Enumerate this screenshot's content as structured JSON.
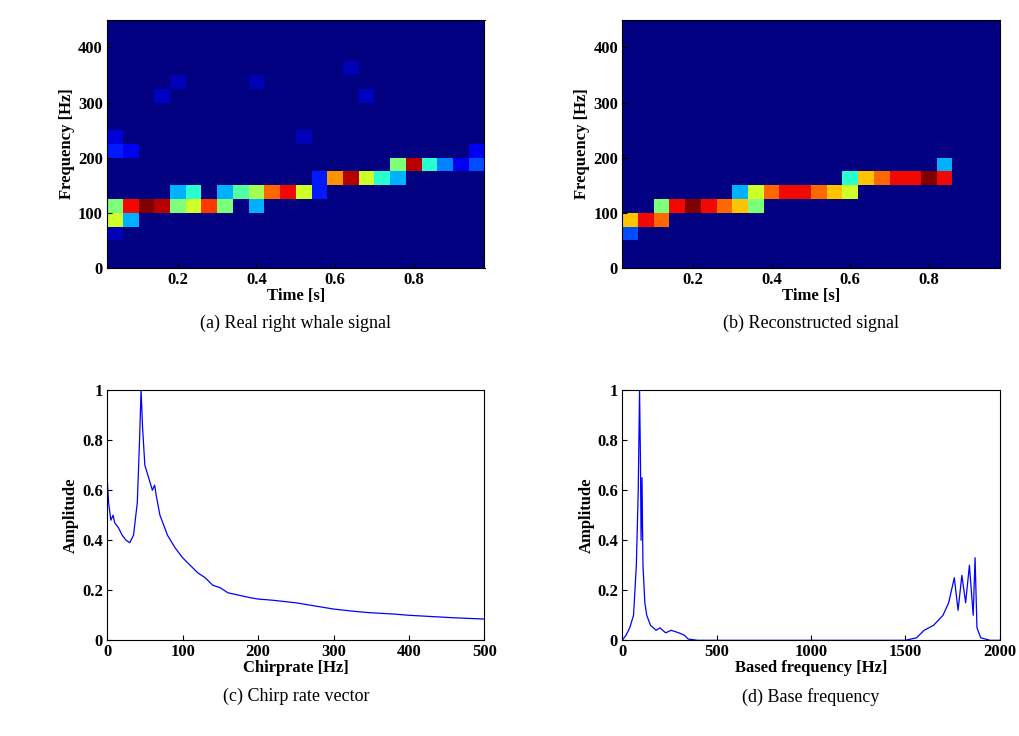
{
  "chart_data": [
    {
      "type": "heatmap",
      "caption": "(a) Real right whale signal",
      "x_label": "Time [s]",
      "y_label": "Frequency [Hz]",
      "xlim": [
        0.02,
        0.98
      ],
      "ylim": [
        0,
        450
      ],
      "xticks": [
        0.2,
        0.4,
        0.6,
        0.8
      ],
      "yticks": [
        0,
        100,
        200,
        300,
        400
      ],
      "x_edges": [
        0.02,
        0.06,
        0.1,
        0.14,
        0.18,
        0.22,
        0.26,
        0.3,
        0.34,
        0.38,
        0.42,
        0.46,
        0.5,
        0.54,
        0.58,
        0.62,
        0.66,
        0.7,
        0.74,
        0.78,
        0.82,
        0.86,
        0.9,
        0.94,
        0.98
      ],
      "y_edges": [
        0,
        25,
        50,
        75,
        100,
        125,
        150,
        175,
        200,
        225,
        250,
        275,
        300,
        325,
        350,
        375,
        400,
        425,
        450
      ],
      "color_range": [
        0,
        1
      ],
      "cells": [
        [
          0,
          0,
          0,
          0,
          0,
          0,
          0,
          0,
          0,
          0,
          0,
          0,
          0,
          0,
          0,
          0,
          0,
          0,
          0,
          0,
          0,
          0,
          0,
          0
        ],
        [
          0,
          0,
          0,
          0,
          0,
          0,
          0,
          0,
          0,
          0,
          0,
          0,
          0,
          0,
          0,
          0,
          0,
          0,
          0,
          0,
          0,
          0,
          0,
          0
        ],
        [
          0.05,
          0,
          0,
          0,
          0,
          0,
          0,
          0,
          0,
          0,
          0,
          0,
          0,
          0,
          0,
          0,
          0,
          0,
          0,
          0,
          0,
          0,
          0,
          0
        ],
        [
          0.6,
          0.3,
          0,
          0,
          0,
          0,
          0,
          0,
          0,
          0,
          0,
          0,
          0,
          0,
          0,
          0,
          0,
          0,
          0,
          0,
          0,
          0,
          0,
          0
        ],
        [
          0.5,
          0.9,
          1.0,
          0.95,
          0.5,
          0.6,
          0.85,
          0.5,
          0,
          0.3,
          0,
          0,
          0,
          0,
          0,
          0,
          0,
          0,
          0,
          0,
          0,
          0,
          0,
          0
        ],
        [
          0,
          0,
          0,
          0,
          0.3,
          0.4,
          0,
          0.3,
          0.45,
          0.55,
          0.8,
          0.9,
          0.6,
          0.15,
          0,
          0,
          0,
          0,
          0,
          0,
          0,
          0,
          0,
          0
        ],
        [
          0,
          0,
          0,
          0,
          0,
          0,
          0,
          0,
          0,
          0,
          0,
          0,
          0,
          0.15,
          0.75,
          0.95,
          0.6,
          0.4,
          0.3,
          0,
          0,
          0,
          0,
          0
        ],
        [
          0,
          0,
          0,
          0,
          0,
          0,
          0,
          0,
          0,
          0,
          0,
          0,
          0,
          0,
          0,
          0,
          0,
          0,
          0.5,
          0.95,
          0.4,
          0.25,
          0.1,
          0.2
        ],
        [
          0.15,
          0.1,
          0,
          0,
          0,
          0,
          0,
          0,
          0,
          0,
          0,
          0,
          0,
          0,
          0,
          0,
          0,
          0,
          0,
          0,
          0,
          0,
          0,
          0.1
        ],
        [
          0.08,
          0,
          0,
          0,
          0,
          0,
          0,
          0,
          0,
          0,
          0,
          0,
          0.05,
          0,
          0,
          0,
          0,
          0,
          0,
          0,
          0,
          0,
          0,
          0
        ],
        [
          0,
          0,
          0,
          0,
          0,
          0,
          0,
          0,
          0,
          0,
          0,
          0,
          0,
          0,
          0,
          0,
          0,
          0,
          0,
          0,
          0,
          0,
          0,
          0
        ],
        [
          0,
          0,
          0,
          0,
          0,
          0,
          0,
          0,
          0,
          0,
          0,
          0,
          0,
          0,
          0,
          0,
          0,
          0,
          0,
          0,
          0,
          0,
          0,
          0
        ],
        [
          0,
          0,
          0,
          0.06,
          0,
          0,
          0,
          0,
          0,
          0,
          0,
          0,
          0,
          0,
          0,
          0,
          0.06,
          0,
          0,
          0,
          0,
          0,
          0,
          0
        ],
        [
          0,
          0,
          0,
          0,
          0.05,
          0,
          0,
          0,
          0,
          0.05,
          0,
          0,
          0,
          0,
          0,
          0,
          0,
          0,
          0,
          0,
          0,
          0,
          0,
          0
        ],
        [
          0,
          0,
          0,
          0,
          0,
          0,
          0,
          0,
          0,
          0,
          0,
          0,
          0,
          0,
          0,
          0.05,
          0,
          0,
          0,
          0,
          0,
          0,
          0,
          0
        ],
        [
          0,
          0,
          0,
          0,
          0,
          0,
          0,
          0,
          0,
          0,
          0,
          0,
          0,
          0,
          0,
          0,
          0,
          0,
          0,
          0,
          0,
          0,
          0,
          0
        ],
        [
          0,
          0,
          0,
          0,
          0,
          0,
          0,
          0,
          0,
          0,
          0,
          0,
          0,
          0,
          0,
          0,
          0,
          0,
          0,
          0,
          0,
          0,
          0,
          0
        ],
        [
          0,
          0,
          0,
          0,
          0,
          0,
          0,
          0,
          0,
          0,
          0,
          0,
          0,
          0,
          0,
          0,
          0,
          0,
          0,
          0,
          0,
          0,
          0,
          0
        ]
      ]
    },
    {
      "type": "heatmap",
      "caption": "(b) Reconstructed signal",
      "x_label": "Time [s]",
      "y_label": "Frequency [Hz]",
      "xlim": [
        0.02,
        0.98
      ],
      "ylim": [
        0,
        450
      ],
      "xticks": [
        0.2,
        0.4,
        0.6,
        0.8
      ],
      "yticks": [
        0,
        100,
        200,
        300,
        400
      ],
      "x_edges": [
        0.02,
        0.06,
        0.1,
        0.14,
        0.18,
        0.22,
        0.26,
        0.3,
        0.34,
        0.38,
        0.42,
        0.46,
        0.5,
        0.54,
        0.58,
        0.62,
        0.66,
        0.7,
        0.74,
        0.78,
        0.82,
        0.86,
        0.9,
        0.94,
        0.98
      ],
      "y_edges": [
        0,
        25,
        50,
        75,
        100,
        125,
        150,
        175,
        200,
        225,
        250,
        275,
        300,
        325,
        350,
        375,
        400,
        425,
        450
      ],
      "color_range": [
        0,
        1
      ],
      "cells": [
        [
          0,
          0,
          0,
          0,
          0,
          0,
          0,
          0,
          0,
          0,
          0,
          0,
          0,
          0,
          0,
          0,
          0,
          0,
          0,
          0,
          0,
          0,
          0,
          0
        ],
        [
          0,
          0,
          0,
          0,
          0,
          0,
          0,
          0,
          0,
          0,
          0,
          0,
          0,
          0,
          0,
          0,
          0,
          0,
          0,
          0,
          0,
          0,
          0,
          0
        ],
        [
          0.2,
          0,
          0,
          0,
          0,
          0,
          0,
          0,
          0,
          0,
          0,
          0,
          0,
          0,
          0,
          0,
          0,
          0,
          0,
          0,
          0,
          0,
          0,
          0
        ],
        [
          0.7,
          0.9,
          0.8,
          0,
          0,
          0,
          0,
          0,
          0,
          0,
          0,
          0,
          0,
          0,
          0,
          0,
          0,
          0,
          0,
          0,
          0,
          0,
          0,
          0
        ],
        [
          0,
          0,
          0.5,
          0.9,
          1.0,
          0.9,
          0.8,
          0.7,
          0.5,
          0,
          0,
          0,
          0,
          0,
          0,
          0,
          0,
          0,
          0,
          0,
          0,
          0,
          0,
          0
        ],
        [
          0,
          0,
          0,
          0,
          0,
          0,
          0,
          0.3,
          0.6,
          0.8,
          0.9,
          0.9,
          0.8,
          0.7,
          0.6,
          0,
          0,
          0,
          0,
          0,
          0,
          0,
          0,
          0
        ],
        [
          0,
          0,
          0,
          0,
          0,
          0,
          0,
          0,
          0,
          0,
          0,
          0,
          0,
          0,
          0.4,
          0.7,
          0.8,
          0.9,
          0.9,
          1.0,
          0.9,
          0,
          0,
          0
        ],
        [
          0,
          0,
          0,
          0,
          0,
          0,
          0,
          0,
          0,
          0,
          0,
          0,
          0,
          0,
          0,
          0,
          0,
          0,
          0,
          0,
          0.3,
          0,
          0,
          0
        ],
        [
          0,
          0,
          0,
          0,
          0,
          0,
          0,
          0,
          0,
          0,
          0,
          0,
          0,
          0,
          0,
          0,
          0,
          0,
          0,
          0,
          0,
          0,
          0,
          0
        ],
        [
          0,
          0,
          0,
          0,
          0,
          0,
          0,
          0,
          0,
          0,
          0,
          0,
          0,
          0,
          0,
          0,
          0,
          0,
          0,
          0,
          0,
          0,
          0,
          0
        ],
        [
          0,
          0,
          0,
          0,
          0,
          0,
          0,
          0,
          0,
          0,
          0,
          0,
          0,
          0,
          0,
          0,
          0,
          0,
          0,
          0,
          0,
          0,
          0,
          0
        ],
        [
          0,
          0,
          0,
          0,
          0,
          0,
          0,
          0,
          0,
          0,
          0,
          0,
          0,
          0,
          0,
          0,
          0,
          0,
          0,
          0,
          0,
          0,
          0,
          0
        ],
        [
          0,
          0,
          0,
          0,
          0,
          0,
          0,
          0,
          0,
          0,
          0,
          0,
          0,
          0,
          0,
          0,
          0,
          0,
          0,
          0,
          0,
          0,
          0,
          0
        ],
        [
          0,
          0,
          0,
          0,
          0,
          0,
          0,
          0,
          0,
          0,
          0,
          0,
          0,
          0,
          0,
          0,
          0,
          0,
          0,
          0,
          0,
          0,
          0,
          0
        ],
        [
          0,
          0,
          0,
          0,
          0,
          0,
          0,
          0,
          0,
          0,
          0,
          0,
          0,
          0,
          0,
          0,
          0,
          0,
          0,
          0,
          0,
          0,
          0,
          0
        ],
        [
          0,
          0,
          0,
          0,
          0,
          0,
          0,
          0,
          0,
          0,
          0,
          0,
          0,
          0,
          0,
          0,
          0,
          0,
          0,
          0,
          0,
          0,
          0,
          0
        ],
        [
          0,
          0,
          0,
          0,
          0,
          0,
          0,
          0,
          0,
          0,
          0,
          0,
          0,
          0,
          0,
          0,
          0,
          0,
          0,
          0,
          0,
          0,
          0,
          0
        ],
        [
          0,
          0,
          0,
          0,
          0,
          0,
          0,
          0,
          0,
          0,
          0,
          0,
          0,
          0,
          0,
          0,
          0,
          0,
          0,
          0,
          0,
          0,
          0,
          0
        ]
      ]
    },
    {
      "type": "line",
      "caption": "(c) Chirp rate vector",
      "x_label": "Chirprate [Hz]",
      "y_label": "Amplitude",
      "xlim": [
        0,
        500
      ],
      "ylim": [
        0,
        1
      ],
      "xticks": [
        0,
        100,
        200,
        300,
        400,
        500
      ],
      "yticks": [
        0,
        0.2,
        0.4,
        0.6,
        0.8,
        1
      ],
      "color": "#0000ff",
      "x": [
        0,
        2,
        5,
        8,
        10,
        15,
        20,
        25,
        30,
        35,
        40,
        43,
        45,
        47,
        50,
        55,
        60,
        63,
        65,
        70,
        80,
        90,
        100,
        110,
        120,
        130,
        140,
        150,
        160,
        175,
        190,
        200,
        220,
        250,
        280,
        300,
        330,
        350,
        380,
        400,
        430,
        460,
        500
      ],
      "values": [
        0.65,
        0.55,
        0.48,
        0.5,
        0.47,
        0.45,
        0.42,
        0.4,
        0.39,
        0.42,
        0.55,
        0.8,
        1.0,
        0.85,
        0.7,
        0.65,
        0.6,
        0.62,
        0.58,
        0.5,
        0.42,
        0.37,
        0.33,
        0.3,
        0.27,
        0.25,
        0.22,
        0.21,
        0.19,
        0.18,
        0.17,
        0.165,
        0.16,
        0.15,
        0.135,
        0.125,
        0.115,
        0.11,
        0.105,
        0.1,
        0.095,
        0.09,
        0.085
      ]
    },
    {
      "type": "line",
      "caption": "(d) Base frequency",
      "x_label": "Based frequency [Hz]",
      "y_label": "Amplitude",
      "xlim": [
        0,
        2000
      ],
      "ylim": [
        0,
        1
      ],
      "xticks": [
        0,
        500,
        1000,
        1500,
        2000
      ],
      "yticks": [
        0,
        0.2,
        0.4,
        0.6,
        0.8,
        1
      ],
      "color": "#0000ff",
      "x": [
        0,
        20,
        40,
        60,
        75,
        85,
        92,
        97,
        100,
        105,
        110,
        120,
        130,
        150,
        180,
        200,
        230,
        260,
        300,
        330,
        350,
        400,
        1500,
        1560,
        1600,
        1650,
        1700,
        1730,
        1760,
        1780,
        1800,
        1820,
        1840,
        1860,
        1870,
        1880,
        1900,
        1950,
        2000
      ],
      "values": [
        0,
        0.02,
        0.05,
        0.1,
        0.3,
        0.6,
        1.0,
        0.7,
        0.4,
        0.65,
        0.3,
        0.15,
        0.1,
        0.06,
        0.04,
        0.05,
        0.03,
        0.04,
        0.03,
        0.02,
        0.005,
        0,
        0,
        0.01,
        0.04,
        0.06,
        0.1,
        0.15,
        0.25,
        0.12,
        0.26,
        0.15,
        0.3,
        0.1,
        0.33,
        0.05,
        0.01,
        0,
        0
      ]
    }
  ]
}
